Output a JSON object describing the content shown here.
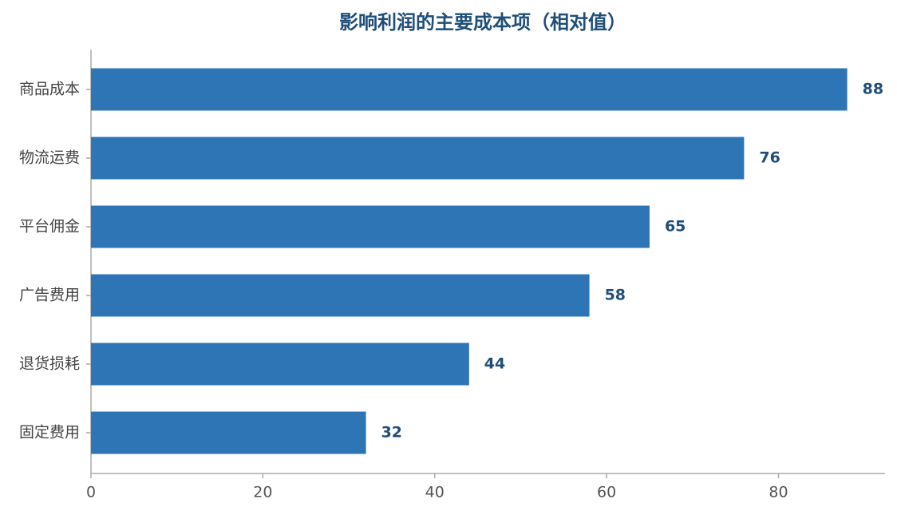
{
  "chart_data": {
    "type": "bar",
    "orientation": "horizontal",
    "title": "影响利润的主要成本项（相对值）",
    "categories": [
      "商品成本",
      "物流运费",
      "平台佣金",
      "广告费用",
      "退货损耗",
      "固定费用"
    ],
    "values": [
      88,
      76,
      65,
      58,
      44,
      32
    ],
    "color": "#2e75b6",
    "xlim": [
      0,
      92.4
    ],
    "xticks": [
      0,
      20,
      40,
      60,
      80
    ],
    "grid": false
  }
}
